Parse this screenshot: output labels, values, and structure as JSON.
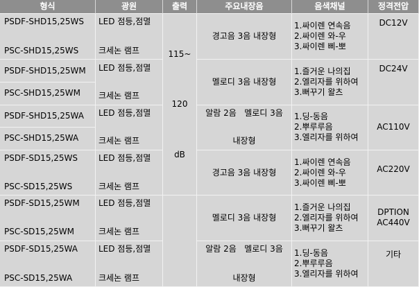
{
  "headers": [
    "형식",
    "광원",
    "출력",
    "주요내장음",
    "음색채널",
    "정격전압"
  ],
  "output": {
    "range": "115~",
    "value": "120",
    "unit": "dB"
  },
  "groups": [
    {
      "models": [
        "PSDF-SHD15,25WS",
        "PSC-SHD15,25WS"
      ],
      "light": [
        "LED 점등,점멸",
        "크세논 램프"
      ],
      "sound": [
        "경고음 3음 내장형"
      ],
      "channels": [
        "1.싸이렌 연속음",
        "2.싸이렌 와-우",
        "3.싸이렌 삐-뽀"
      ],
      "voltage": [
        "DC12V"
      ]
    },
    {
      "models": [
        "PSDF-SHD15,25WM",
        "PSC-SHD15,25WM"
      ],
      "light": [
        "LED 점등,점멸",
        "크세논 램프"
      ],
      "sound": [
        "멜로디 3음 내장형"
      ],
      "channels": [
        "1.즐거운 나의집",
        "2.엘리자를 위하여",
        "3.뻐꾸기 왈츠"
      ],
      "voltage": [
        "DC24V"
      ]
    },
    {
      "models": [
        "PSDF-SHD15,25WA",
        "PSC-SHD15,25WA"
      ],
      "light": [
        "LED 점등,점멸",
        "크세논 램프"
      ],
      "sound": [
        "알람 2음   멜로디 3음",
        "내장형"
      ],
      "channels": [
        "1.딩-동음",
        "2.뿌루루음",
        "3.엘리자를 위하여"
      ],
      "voltage": [
        "AC110V"
      ]
    },
    {
      "models": [
        "PSDF-SD15,25WS",
        "PSC-SD15,25WS"
      ],
      "light": [
        "LED 점등,점멸",
        "크세논 램프"
      ],
      "sound": [
        "경고음 3음 내장형"
      ],
      "channels": [
        "1.싸이렌 연속음",
        "2.싸이렌 와-우",
        "3.싸이렌 삐-뽀"
      ],
      "voltage": [
        "AC220V"
      ]
    },
    {
      "models": [
        "PSDF-SD15,25WM",
        "PSC-SD15,25WM"
      ],
      "light": [
        "LED 점등,점멸",
        "크세논 램프"
      ],
      "sound": [
        "멜로디 3음 내장형"
      ],
      "channels": [
        "1.즐거운 나의집",
        "2.엘리자를 위하여",
        "3.뻐꾸기 왈츠"
      ],
      "voltage": [
        "DPTION",
        "AC440V"
      ]
    },
    {
      "models": [
        "PSDF-SD15,25WA",
        "PSC-SD15,25WA"
      ],
      "light": [
        "LED 점등,점멸",
        "크세논 램프"
      ],
      "sound": [
        "알람 2음   멜로디 3음",
        "내장형"
      ],
      "channels": [
        "1.딩-동음",
        "2.뿌루루음",
        "3.엘리자를 위하여"
      ],
      "voltage": [
        "기타"
      ]
    }
  ]
}
